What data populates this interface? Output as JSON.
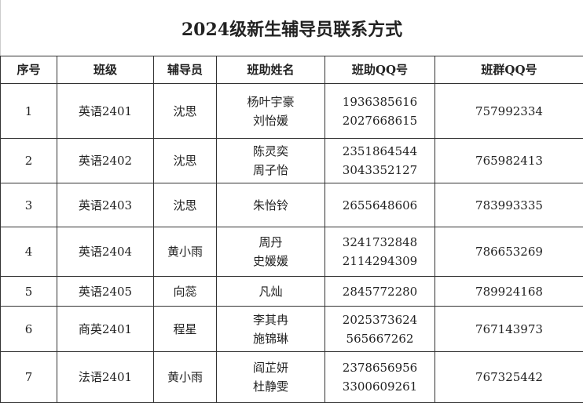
{
  "title": "2024级新生辅导员联系方式",
  "headers": [
    "序号",
    "班级",
    "辅导员",
    "班助姓名",
    "班助QQ号",
    "班群QQ号"
  ],
  "rows": [
    {
      "no": "1",
      "class": "英语2401",
      "counselor": "沈思",
      "assistants": [
        "杨叶宇豪",
        "刘怡媛"
      ],
      "assistant_qq": [
        "1936385616",
        "2027668615"
      ],
      "group_qq": "757992334"
    },
    {
      "no": "2",
      "class": "英语2402",
      "counselor": "沈思",
      "assistants": [
        "陈灵奕",
        "周子怡"
      ],
      "assistant_qq": [
        "2351864544",
        "3043352127"
      ],
      "group_qq": "765982413"
    },
    {
      "no": "3",
      "class": "英语2403",
      "counselor": "沈思",
      "assistants": [
        "朱怡铃"
      ],
      "assistant_qq": [
        "2655648606"
      ],
      "group_qq": "783993335"
    },
    {
      "no": "4",
      "class": "英语2404",
      "counselor": "黄小雨",
      "assistants": [
        "周丹",
        "史媛媛"
      ],
      "assistant_qq": [
        "3241732848",
        "2114294309"
      ],
      "group_qq": "786653269"
    },
    {
      "no": "5",
      "class": "英语2405",
      "counselor": "向蕊",
      "assistants": [
        "凡灿"
      ],
      "assistant_qq": [
        "2845772280"
      ],
      "group_qq": "789924168"
    },
    {
      "no": "6",
      "class": "商英2401",
      "counselor": "程星",
      "assistants": [
        "李其冉",
        "施锦琳"
      ],
      "assistant_qq": [
        "2025373624",
        "565667262"
      ],
      "group_qq": "767143973"
    },
    {
      "no": "7",
      "class": "法语2401",
      "counselor": "黄小雨",
      "assistants": [
        "阎芷妍",
        "杜静雯"
      ],
      "assistant_qq": [
        "2378656956",
        "3300609261"
      ],
      "group_qq": "767325442"
    }
  ]
}
